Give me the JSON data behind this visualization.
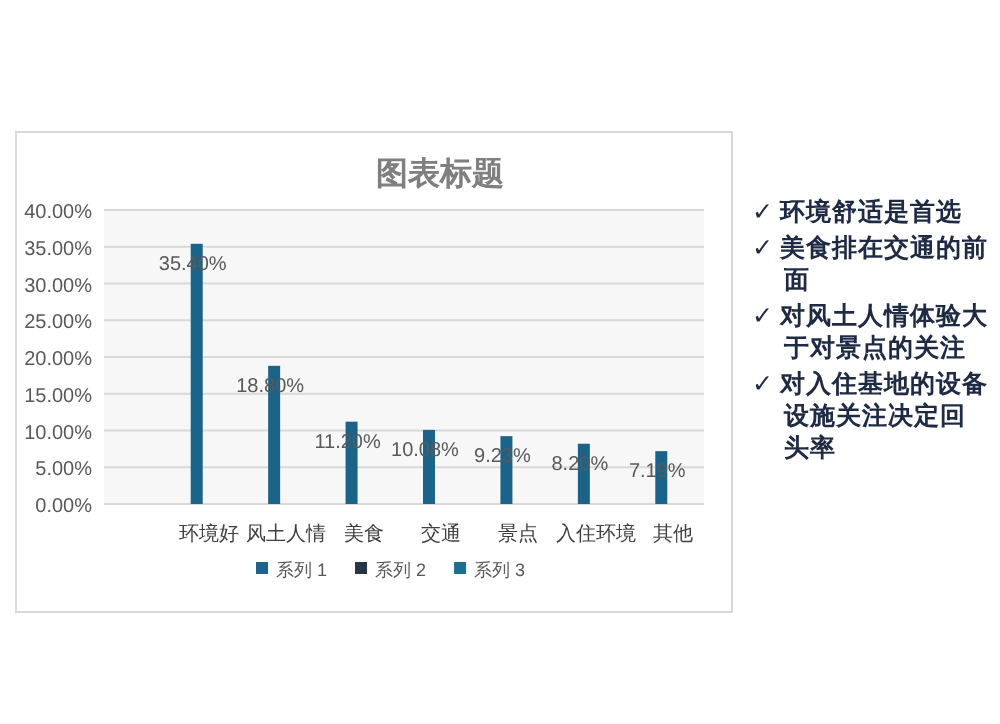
{
  "chart_data": {
    "type": "bar",
    "title": "图表标题",
    "categories": [
      "环境好",
      "风土人情",
      "美食",
      "交通",
      "景点",
      "入住环境",
      "其他"
    ],
    "series": [
      {
        "name": "系列 1",
        "color": "#1b6388",
        "values": [
          35.4,
          18.8,
          11.2,
          10.08,
          9.23,
          8.2,
          7.19
        ],
        "value_labels": [
          "35.40%",
          "18.80%",
          "11.20%",
          "10.08%",
          "9.23%",
          "8.20%",
          "7.19%"
        ]
      },
      {
        "name": "系列 2",
        "color": "#263445",
        "values": [
          null,
          null,
          null,
          null,
          null,
          null,
          null
        ]
      },
      {
        "name": "系列 3",
        "color": "#1d6c94",
        "values": [
          null,
          null,
          null,
          null,
          null,
          null,
          null
        ]
      }
    ],
    "ylim": [
      0,
      40
    ],
    "yticks": [
      {
        "value": 0,
        "label": "0.00%"
      },
      {
        "value": 5,
        "label": "5.00%"
      },
      {
        "value": 10,
        "label": "10.00%"
      },
      {
        "value": 15,
        "label": "15.00%"
      },
      {
        "value": 20,
        "label": "20.00%"
      },
      {
        "value": 25,
        "label": "25.00%"
      },
      {
        "value": 30,
        "label": "30.00%"
      },
      {
        "value": 35,
        "label": "35.00%"
      },
      {
        "value": 40,
        "label": "40.00%"
      }
    ],
    "grid": "y",
    "legend": "bottom",
    "annotations": [
      "✓ 环境舒适是首选",
      "✓ 美食排在交通的前面",
      "✓ 对风土人情体验大于对景点的关注",
      "✓ 对入住基地的设备设施关注决定回头率"
    ]
  }
}
